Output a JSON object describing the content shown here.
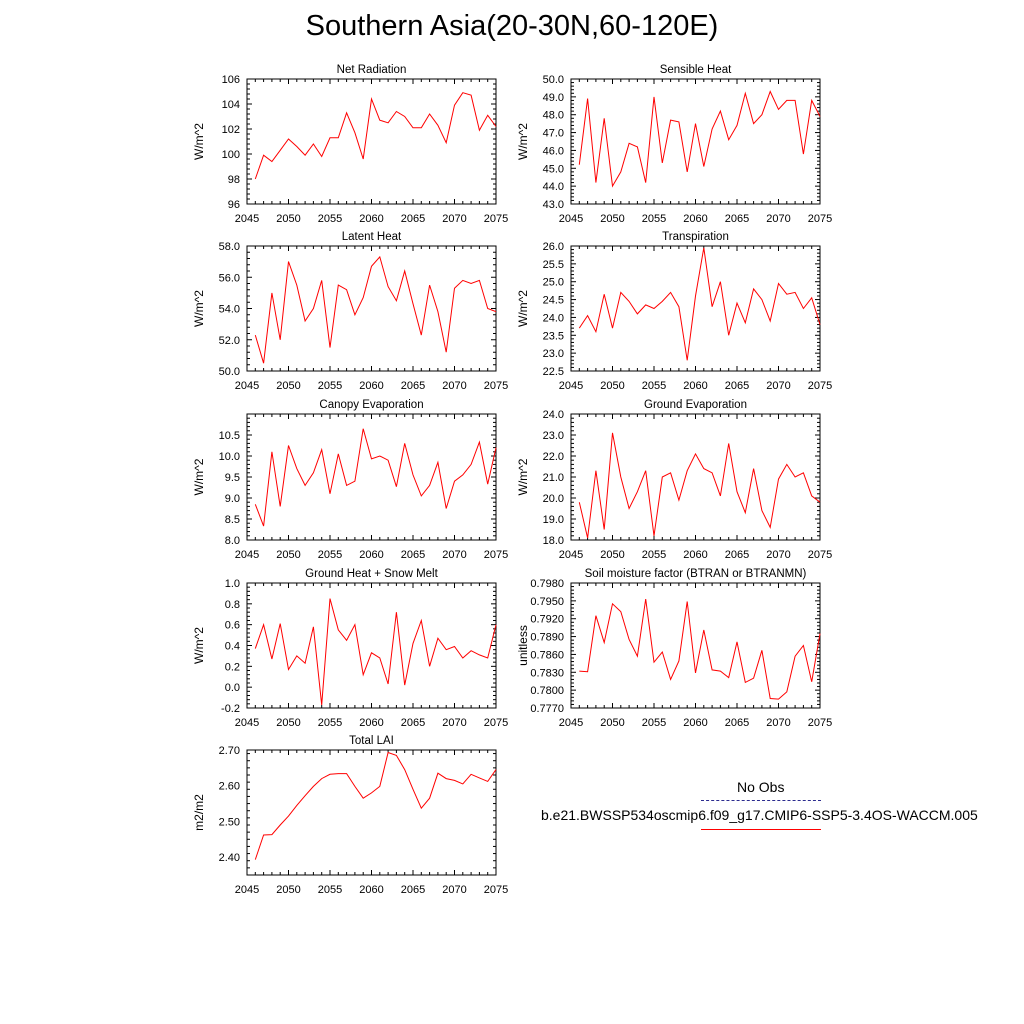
{
  "title": "Southern Asia(20-30N,60-120E)",
  "legend": {
    "obs_label": "No Obs",
    "model_label": "b.e21.BWSSP534oscmip6.f09_g17.CMIP6-SSP5-3.4OS-WACCM.005",
    "obs_color": "#2b2b8f",
    "model_color": "#ff0000"
  },
  "chart_data": [
    {
      "type": "line",
      "title": "Net Radiation",
      "xlabel": "",
      "ylabel": "W/m^2",
      "xlim": [
        2045,
        2075
      ],
      "ylim": [
        96,
        106
      ],
      "xticks": [
        "2045",
        "2050",
        "2055",
        "2060",
        "2065",
        "2070",
        "2075"
      ],
      "yticks": [
        "96",
        "98",
        "100",
        "102",
        "104",
        "106"
      ],
      "x": [
        2046,
        2047,
        2048,
        2049,
        2050,
        2051,
        2052,
        2053,
        2054,
        2055,
        2056,
        2057,
        2058,
        2059,
        2060,
        2061,
        2062,
        2063,
        2064,
        2065,
        2066,
        2067,
        2068,
        2069,
        2070,
        2071,
        2072,
        2073,
        2074,
        2075
      ],
      "series": [
        {
          "values": [
            98.0,
            99.9,
            99.4,
            100.3,
            101.2,
            100.6,
            99.9,
            100.8,
            99.8,
            101.3,
            101.3,
            103.3,
            101.7,
            99.6,
            104.4,
            102.7,
            102.5,
            103.4,
            103.0,
            102.1,
            102.1,
            103.2,
            102.3,
            100.9,
            103.9,
            104.9,
            104.7,
            101.9,
            103.1,
            102.2
          ]
        }
      ]
    },
    {
      "type": "line",
      "title": "Sensible Heat",
      "xlabel": "",
      "ylabel": "W/m^2",
      "xlim": [
        2045,
        2075
      ],
      "ylim": [
        43.0,
        50.0
      ],
      "xticks": [
        "2045",
        "2050",
        "2055",
        "2060",
        "2065",
        "2070",
        "2075"
      ],
      "yticks": [
        "43.0",
        "44.0",
        "45.0",
        "46.0",
        "47.0",
        "48.0",
        "49.0",
        "50.0"
      ],
      "x": [
        2046,
        2047,
        2048,
        2049,
        2050,
        2051,
        2052,
        2053,
        2054,
        2055,
        2056,
        2057,
        2058,
        2059,
        2060,
        2061,
        2062,
        2063,
        2064,
        2065,
        2066,
        2067,
        2068,
        2069,
        2070,
        2071,
        2072,
        2073,
        2074,
        2075
      ],
      "series": [
        {
          "values": [
            45.2,
            48.9,
            44.2,
            47.8,
            44.0,
            44.8,
            46.4,
            46.2,
            44.2,
            49.0,
            45.3,
            47.7,
            47.6,
            44.8,
            47.5,
            45.1,
            47.2,
            48.2,
            46.6,
            47.4,
            49.2,
            47.5,
            48.0,
            49.3,
            48.3,
            48.8,
            48.8,
            45.8,
            48.8,
            47.9
          ]
        }
      ]
    },
    {
      "type": "line",
      "title": "Latent Heat",
      "xlabel": "",
      "ylabel": "W/m^2",
      "xlim": [
        2045,
        2075
      ],
      "ylim": [
        50.0,
        58.0
      ],
      "xticks": [
        "2045",
        "2050",
        "2055",
        "2060",
        "2065",
        "2070",
        "2075"
      ],
      "yticks": [
        "50.0",
        "52.0",
        "54.0",
        "56.0",
        "58.0"
      ],
      "x": [
        2046,
        2047,
        2048,
        2049,
        2050,
        2051,
        2052,
        2053,
        2054,
        2055,
        2056,
        2057,
        2058,
        2059,
        2060,
        2061,
        2062,
        2063,
        2064,
        2065,
        2066,
        2067,
        2068,
        2069,
        2070,
        2071,
        2072,
        2073,
        2074,
        2075
      ],
      "series": [
        {
          "values": [
            52.3,
            50.5,
            55.0,
            52.0,
            57.0,
            55.5,
            53.2,
            54.0,
            55.8,
            51.5,
            55.5,
            55.2,
            53.6,
            54.7,
            56.7,
            57.3,
            55.4,
            54.5,
            56.4,
            54.3,
            52.3,
            55.5,
            53.8,
            51.2,
            55.3,
            55.8,
            55.6,
            55.8,
            54.0,
            53.8
          ]
        }
      ]
    },
    {
      "type": "line",
      "title": "Transpiration",
      "xlabel": "",
      "ylabel": "W/m^2",
      "xlim": [
        2045,
        2075
      ],
      "ylim": [
        22.5,
        26.0
      ],
      "xticks": [
        "2045",
        "2050",
        "2055",
        "2060",
        "2065",
        "2070",
        "2075"
      ],
      "yticks": [
        "22.5",
        "23.0",
        "23.5",
        "24.0",
        "24.5",
        "25.0",
        "25.5",
        "26.0"
      ],
      "x": [
        2046,
        2047,
        2048,
        2049,
        2050,
        2051,
        2052,
        2053,
        2054,
        2055,
        2056,
        2057,
        2058,
        2059,
        2060,
        2061,
        2062,
        2063,
        2064,
        2065,
        2066,
        2067,
        2068,
        2069,
        2070,
        2071,
        2072,
        2073,
        2074,
        2075
      ],
      "series": [
        {
          "values": [
            23.7,
            24.05,
            23.6,
            24.65,
            23.7,
            24.7,
            24.45,
            24.1,
            24.35,
            24.25,
            24.45,
            24.7,
            24.3,
            22.8,
            24.6,
            25.95,
            24.3,
            25.0,
            23.5,
            24.4,
            23.85,
            24.8,
            24.5,
            23.9,
            24.95,
            24.65,
            24.7,
            24.25,
            24.55,
            23.8
          ]
        }
      ]
    },
    {
      "type": "line",
      "title": "Canopy Evaporation",
      "xlabel": "",
      "ylabel": "W/m^2",
      "xlim": [
        2045,
        2075
      ],
      "ylim": [
        8.0,
        11.0
      ],
      "xticks": [
        "2045",
        "2050",
        "2055",
        "2060",
        "2065",
        "2070",
        "2075"
      ],
      "yticks": [
        "8.0",
        "8.5",
        "9.0",
        "9.5",
        "10.0",
        "10.5"
      ],
      "x": [
        2046,
        2047,
        2048,
        2049,
        2050,
        2051,
        2052,
        2053,
        2054,
        2055,
        2056,
        2057,
        2058,
        2059,
        2060,
        2061,
        2062,
        2063,
        2064,
        2065,
        2066,
        2067,
        2068,
        2069,
        2070,
        2071,
        2072,
        2073,
        2074,
        2075
      ],
      "series": [
        {
          "values": [
            8.85,
            8.33,
            10.1,
            8.8,
            10.25,
            9.7,
            9.3,
            9.6,
            10.15,
            9.1,
            10.05,
            9.3,
            9.4,
            10.65,
            9.93,
            10.0,
            9.9,
            9.27,
            10.3,
            9.55,
            9.05,
            9.3,
            9.85,
            8.75,
            9.4,
            9.55,
            9.8,
            10.33,
            9.33,
            10.2
          ]
        }
      ]
    },
    {
      "type": "line",
      "title": "Ground Evaporation",
      "xlabel": "",
      "ylabel": "W/m^2",
      "xlim": [
        2045,
        2075
      ],
      "ylim": [
        18.0,
        24.0
      ],
      "xticks": [
        "2045",
        "2050",
        "2055",
        "2060",
        "2065",
        "2070",
        "2075"
      ],
      "yticks": [
        "18.0",
        "19.0",
        "20.0",
        "21.0",
        "22.0",
        "23.0",
        "24.0"
      ],
      "x": [
        2046,
        2047,
        2048,
        2049,
        2050,
        2051,
        2052,
        2053,
        2054,
        2055,
        2056,
        2057,
        2058,
        2059,
        2060,
        2061,
        2062,
        2063,
        2064,
        2065,
        2066,
        2067,
        2068,
        2069,
        2070,
        2071,
        2072,
        2073,
        2074,
        2075
      ],
      "series": [
        {
          "values": [
            19.8,
            18.1,
            21.3,
            18.5,
            23.1,
            21.0,
            19.5,
            20.3,
            21.3,
            18.2,
            21.0,
            21.2,
            19.9,
            21.3,
            22.1,
            21.4,
            21.2,
            20.1,
            22.6,
            20.3,
            19.3,
            21.4,
            19.4,
            18.6,
            20.9,
            21.6,
            21.0,
            21.2,
            20.1,
            19.8
          ]
        }
      ]
    },
    {
      "type": "line",
      "title": "Ground Heat + Snow Melt",
      "xlabel": "",
      "ylabel": "W/m^2",
      "xlim": [
        2045,
        2075
      ],
      "ylim": [
        -0.2,
        1.0
      ],
      "xticks": [
        "2045",
        "2050",
        "2055",
        "2060",
        "2065",
        "2070",
        "2075"
      ],
      "yticks": [
        "-0.2",
        "0.0",
        "0.2",
        "0.4",
        "0.6",
        "0.8",
        "1.0"
      ],
      "x": [
        2046,
        2047,
        2048,
        2049,
        2050,
        2051,
        2052,
        2053,
        2054,
        2055,
        2056,
        2057,
        2058,
        2059,
        2060,
        2061,
        2062,
        2063,
        2064,
        2065,
        2066,
        2067,
        2068,
        2069,
        2070,
        2071,
        2072,
        2073,
        2074,
        2075
      ],
      "series": [
        {
          "values": [
            0.37,
            0.6,
            0.27,
            0.61,
            0.17,
            0.3,
            0.23,
            0.58,
            -0.17,
            0.85,
            0.55,
            0.45,
            0.6,
            0.12,
            0.33,
            0.28,
            0.03,
            0.72,
            0.02,
            0.42,
            0.64,
            0.2,
            0.47,
            0.36,
            0.39,
            0.28,
            0.35,
            0.31,
            0.28,
            0.6
          ]
        }
      ]
    },
    {
      "type": "line",
      "title": "Soil moisture factor (BTRAN or BTRANMN)",
      "xlabel": "",
      "ylabel": "unitless",
      "xlim": [
        2045,
        2075
      ],
      "ylim": [
        0.777,
        0.798
      ],
      "xticks": [
        "2045",
        "2050",
        "2055",
        "2060",
        "2065",
        "2070",
        "2075"
      ],
      "yticks": [
        "0.7770",
        "0.7800",
        "0.7830",
        "0.7860",
        "0.7890",
        "0.7920",
        "0.7950",
        "0.7980"
      ],
      "x": [
        2046,
        2047,
        2048,
        2049,
        2050,
        2051,
        2052,
        2053,
        2054,
        2055,
        2056,
        2057,
        2058,
        2059,
        2060,
        2061,
        2062,
        2063,
        2064,
        2065,
        2066,
        2067,
        2068,
        2069,
        2070,
        2071,
        2072,
        2073,
        2074,
        2075
      ],
      "series": [
        {
          "values": [
            0.7832,
            0.7831,
            0.7925,
            0.788,
            0.7945,
            0.7932,
            0.7885,
            0.7857,
            0.7953,
            0.7847,
            0.7864,
            0.7818,
            0.7849,
            0.7949,
            0.7829,
            0.7901,
            0.7834,
            0.7832,
            0.7821,
            0.7881,
            0.7813,
            0.782,
            0.7867,
            0.7786,
            0.7785,
            0.7797,
            0.7857,
            0.7875,
            0.7814,
            0.7895
          ]
        }
      ]
    },
    {
      "type": "line",
      "title": "Total LAI",
      "xlabel": "",
      "ylabel": "m2/m2",
      "xlim": [
        2045,
        2075
      ],
      "ylim": [
        2.35,
        2.7
      ],
      "xticks": [
        "2045",
        "2050",
        "2055",
        "2060",
        "2065",
        "2070",
        "2075"
      ],
      "yticks": [
        "2.40",
        "2.50",
        "2.60",
        "2.70"
      ],
      "x": [
        2046,
        2047,
        2048,
        2049,
        2050,
        2051,
        2052,
        2053,
        2054,
        2055,
        2056,
        2057,
        2058,
        2059,
        2060,
        2061,
        2062,
        2063,
        2064,
        2065,
        2066,
        2067,
        2068,
        2069,
        2070,
        2071,
        2072,
        2073,
        2074,
        2075
      ],
      "series": [
        {
          "values": [
            2.393,
            2.462,
            2.463,
            2.49,
            2.515,
            2.545,
            2.572,
            2.598,
            2.62,
            2.632,
            2.634,
            2.634,
            2.598,
            2.565,
            2.58,
            2.598,
            2.693,
            2.685,
            2.645,
            2.59,
            2.537,
            2.565,
            2.635,
            2.62,
            2.615,
            2.605,
            2.632,
            2.622,
            2.612,
            2.645
          ]
        }
      ]
    }
  ]
}
